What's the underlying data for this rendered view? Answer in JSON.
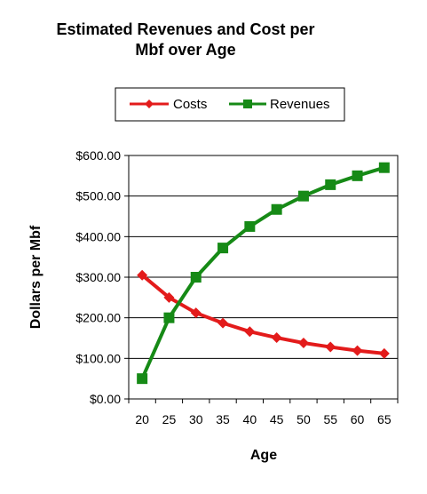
{
  "chart_data": {
    "type": "line",
    "title_lines": [
      "Estimated Revenues and Cost per",
      "Mbf over Age"
    ],
    "xlabel": "Age",
    "ylabel": "Dollars per Mbf",
    "x": [
      20,
      25,
      30,
      35,
      40,
      45,
      50,
      55,
      60,
      65
    ],
    "ylim": [
      0,
      600
    ],
    "yticks": [
      0,
      100,
      200,
      300,
      400,
      500,
      600
    ],
    "ytick_labels": [
      "$0.00",
      "$100.00",
      "$200.00",
      "$300.00",
      "$400.00",
      "$500.00",
      "$600.00"
    ],
    "grid": "horizontal",
    "legend_position": "top",
    "series": [
      {
        "name": "Costs",
        "color": "#e31b1b",
        "marker": "diamond",
        "values": [
          305,
          250,
          212,
          187,
          166,
          151,
          138,
          128,
          119,
          112
        ]
      },
      {
        "name": "Revenues",
        "color": "#168a16",
        "marker": "square",
        "values": [
          50,
          200,
          300,
          372,
          425,
          467,
          500,
          528,
          550,
          570
        ]
      }
    ]
  }
}
